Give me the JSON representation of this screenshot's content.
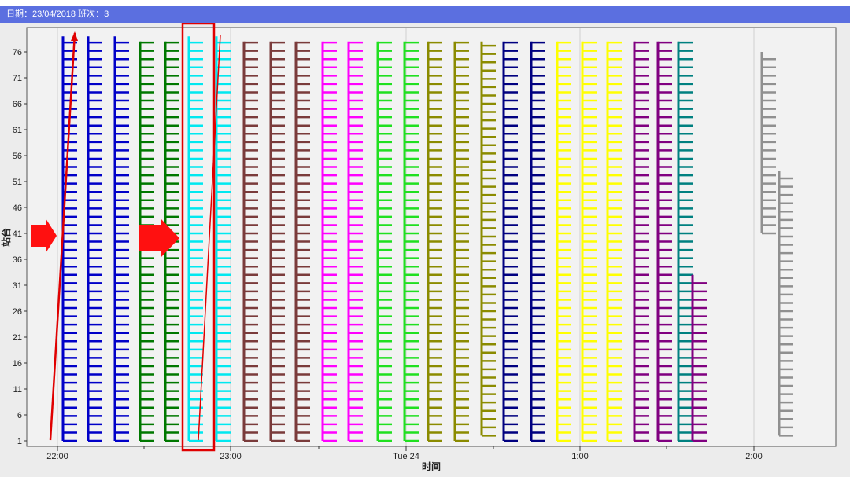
{
  "window": {
    "title": "日期：23/04/2018   班次：3"
  },
  "chart_data": {
    "type": "scatter",
    "xlabel": "时间",
    "ylabel": "站台",
    "x_ticks": [
      "22:00",
      "23:00",
      "Tue 24",
      "1:00",
      "2:00"
    ],
    "y_ticks": [
      1,
      6,
      11,
      16,
      21,
      26,
      31,
      36,
      41,
      46,
      51,
      56,
      61,
      66,
      71,
      76
    ],
    "ylim": [
      0,
      80
    ],
    "grid": "vertical",
    "series_colors": [
      "#0000c8",
      "#007800",
      "#00e8f0",
      "#7a3b3b",
      "#ff00ff",
      "#20e020",
      "#8b8b00",
      "#000080",
      "#ffff00",
      "#800080",
      "#008080",
      "#909090",
      "#ff0000",
      "#80ff40"
    ],
    "annotations": [
      "red-arrow-left",
      "red-arrow-middle",
      "red-diagonal-line",
      "red-highlight-box"
    ]
  }
}
